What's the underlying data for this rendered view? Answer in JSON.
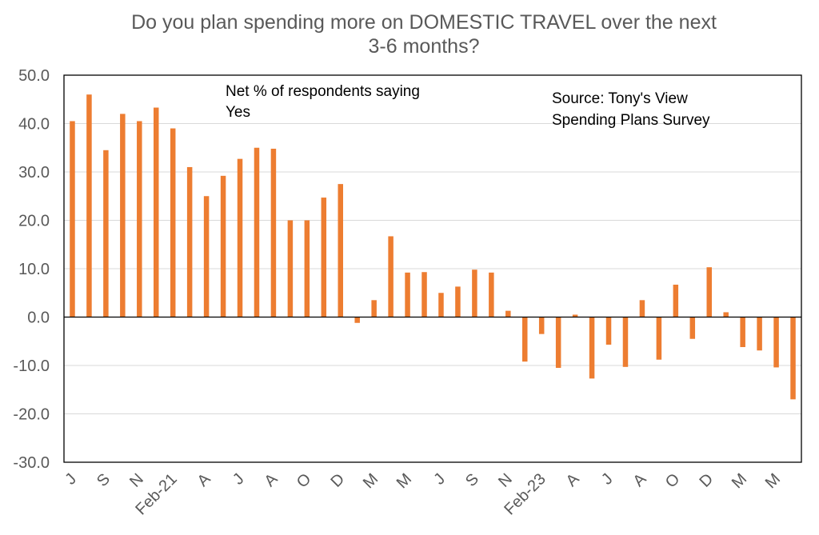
{
  "chart_data": {
    "type": "bar",
    "title_lines": [
      "Do you plan spending more on DOMESTIC TRAVEL over the next",
      "3-6 months?"
    ],
    "annotation_left": [
      "Net % of respondents saying",
      "Yes"
    ],
    "annotation_right": [
      "Source: Tony's View",
      "Spending Plans Survey"
    ],
    "ylim": [
      -30,
      50
    ],
    "ytick_step": 10,
    "ytick_labels": [
      "50.0",
      "40.0",
      "30.0",
      "20.0",
      "10.0",
      "0.0",
      "-10.0",
      "-20.0",
      "-30.0"
    ],
    "xtick_labels": [
      "J",
      "S",
      "N",
      "Feb-21",
      "A",
      "J",
      "A",
      "O",
      "D",
      "M",
      "M",
      "J",
      "S",
      "N",
      "Feb-23",
      "A",
      "J",
      "A",
      "O",
      "D",
      "M",
      "M"
    ],
    "values": [
      40.5,
      46.0,
      34.5,
      42.0,
      40.5,
      43.3,
      39.0,
      31.0,
      25.0,
      29.2,
      32.7,
      35.0,
      34.8,
      20.0,
      20.0,
      24.7,
      27.5,
      -1.2,
      3.5,
      16.7,
      9.2,
      9.3,
      5.0,
      6.3,
      9.8,
      9.2,
      1.3,
      -9.2,
      -3.5,
      -10.5,
      0.5,
      -12.7,
      -5.7,
      -10.3,
      3.5,
      -8.8,
      6.7,
      -4.5,
      10.3,
      1.0,
      -6.2,
      -6.9,
      -10.4,
      -17.0
    ],
    "bar_color": "#ED7D31",
    "grid": true,
    "xlabel": "",
    "ylabel": ""
  }
}
